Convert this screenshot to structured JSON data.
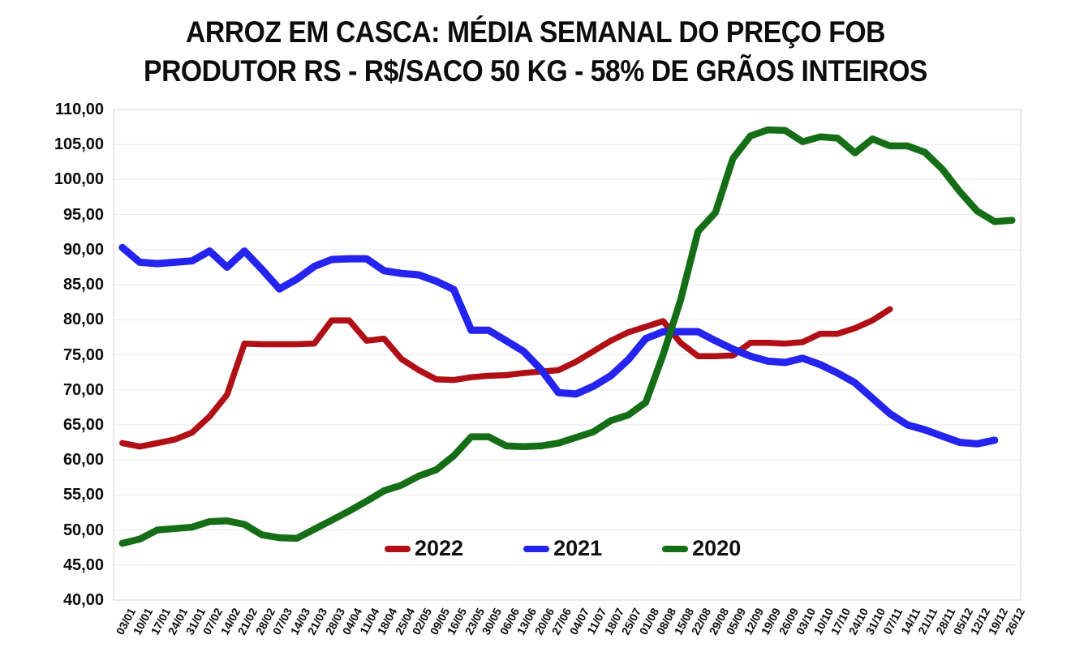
{
  "title": {
    "line1": "ARROZ EM CASCA: MÉDIA SEMANAL DO PREÇO FOB",
    "line2": "PRODUTOR RS - R$/SACO 50 KG - 58% DE GRÃOS INTEIROS"
  },
  "chart_data": {
    "type": "line",
    "title": "ARROZ EM CASCA: MÉDIA SEMANAL DO PREÇO FOB PRODUTOR RS - R$/SACO 50 KG - 58% DE GRÃOS INTEIROS",
    "grid": true,
    "legend_position": "bottom-center-inside",
    "ylim": [
      40,
      110
    ],
    "ytick_step": 5,
    "ytick_labels": [
      "110,00",
      "105,00",
      "100,00",
      "95,00",
      "90,00",
      "85,00",
      "80,00",
      "75,00",
      "70,00",
      "65,00",
      "60,00",
      "55,00",
      "50,00",
      "45,00",
      "40,00"
    ],
    "categories": [
      "03/01",
      "10/01",
      "17/01",
      "24/01",
      "31/01",
      "07/02",
      "14/02",
      "21/02",
      "28/02",
      "07/03",
      "14/03",
      "21/03",
      "28/03",
      "04/04",
      "11/04",
      "18/04",
      "25/04",
      "02/05",
      "09/05",
      "16/05",
      "23/05",
      "30/05",
      "06/06",
      "13/06",
      "20/06",
      "27/06",
      "04/07",
      "11/07",
      "18/07",
      "25/07",
      "01/08",
      "08/08",
      "15/08",
      "22/08",
      "29/08",
      "05/09",
      "12/09",
      "19/09",
      "26/09",
      "03/10",
      "10/10",
      "17/10",
      "24/10",
      "31/10",
      "07/11",
      "14/11",
      "21/11",
      "28/11",
      "05/12",
      "12/12",
      "19/12",
      "26/12"
    ],
    "series": [
      {
        "name": "2022",
        "color": "#b00f15",
        "stroke_width": 7.5,
        "values": [
          62.4,
          61.9,
          62.4,
          62.9,
          63.9,
          66.2,
          69.3,
          76.6,
          76.5,
          76.5,
          76.5,
          76.6,
          79.9,
          79.9,
          77.0,
          77.3,
          74.4,
          72.8,
          71.5,
          71.4,
          71.8,
          72.0,
          72.1,
          72.4,
          72.6,
          72.8,
          74.0,
          75.5,
          77.0,
          78.2,
          79.0,
          79.8,
          76.7,
          74.8,
          74.8,
          74.9,
          76.7,
          76.7,
          76.6,
          76.8,
          78.0,
          78.0,
          78.8,
          79.9,
          81.5,
          null,
          null,
          null,
          null,
          null,
          null,
          null
        ]
      },
      {
        "name": "2021",
        "color": "#2424ee",
        "stroke_width": 9,
        "values": [
          90.3,
          88.2,
          88.0,
          88.2,
          88.4,
          89.8,
          87.5,
          89.8,
          87.2,
          84.4,
          85.8,
          87.6,
          88.6,
          88.7,
          88.7,
          87.0,
          86.6,
          86.4,
          85.5,
          84.3,
          78.5,
          78.5,
          77.0,
          75.5,
          72.9,
          69.6,
          69.4,
          70.5,
          72.0,
          74.3,
          77.3,
          78.3,
          78.3,
          78.3,
          77.0,
          75.8,
          74.8,
          74.1,
          73.9,
          74.5,
          73.6,
          72.4,
          71.0,
          68.8,
          66.6,
          65.0,
          64.3,
          63.4,
          62.5,
          62.3,
          62.8,
          null
        ]
      },
      {
        "name": "2020",
        "color": "#156e15",
        "stroke_width": 8.5,
        "values": [
          48.1,
          48.7,
          50.0,
          50.2,
          50.4,
          51.2,
          51.3,
          50.8,
          49.3,
          48.9,
          48.8,
          50.1,
          51.4,
          52.7,
          54.1,
          55.6,
          56.4,
          57.7,
          58.6,
          60.6,
          63.3,
          63.3,
          62.0,
          61.9,
          62.0,
          62.4,
          63.2,
          64.0,
          65.6,
          66.4,
          68.2,
          75.0,
          82.8,
          92.6,
          95.3,
          103.0,
          106.2,
          107.1,
          107.0,
          105.4,
          106.1,
          105.9,
          103.8,
          105.8,
          104.8,
          104.8,
          103.9,
          101.5,
          98.3,
          95.5,
          94.0,
          94.2
        ]
      }
    ],
    "colors": {
      "grid": "#eaeaea",
      "plot_border": "#d6d6d6",
      "text": "#0d0d0d",
      "background": "#ffffff"
    }
  }
}
